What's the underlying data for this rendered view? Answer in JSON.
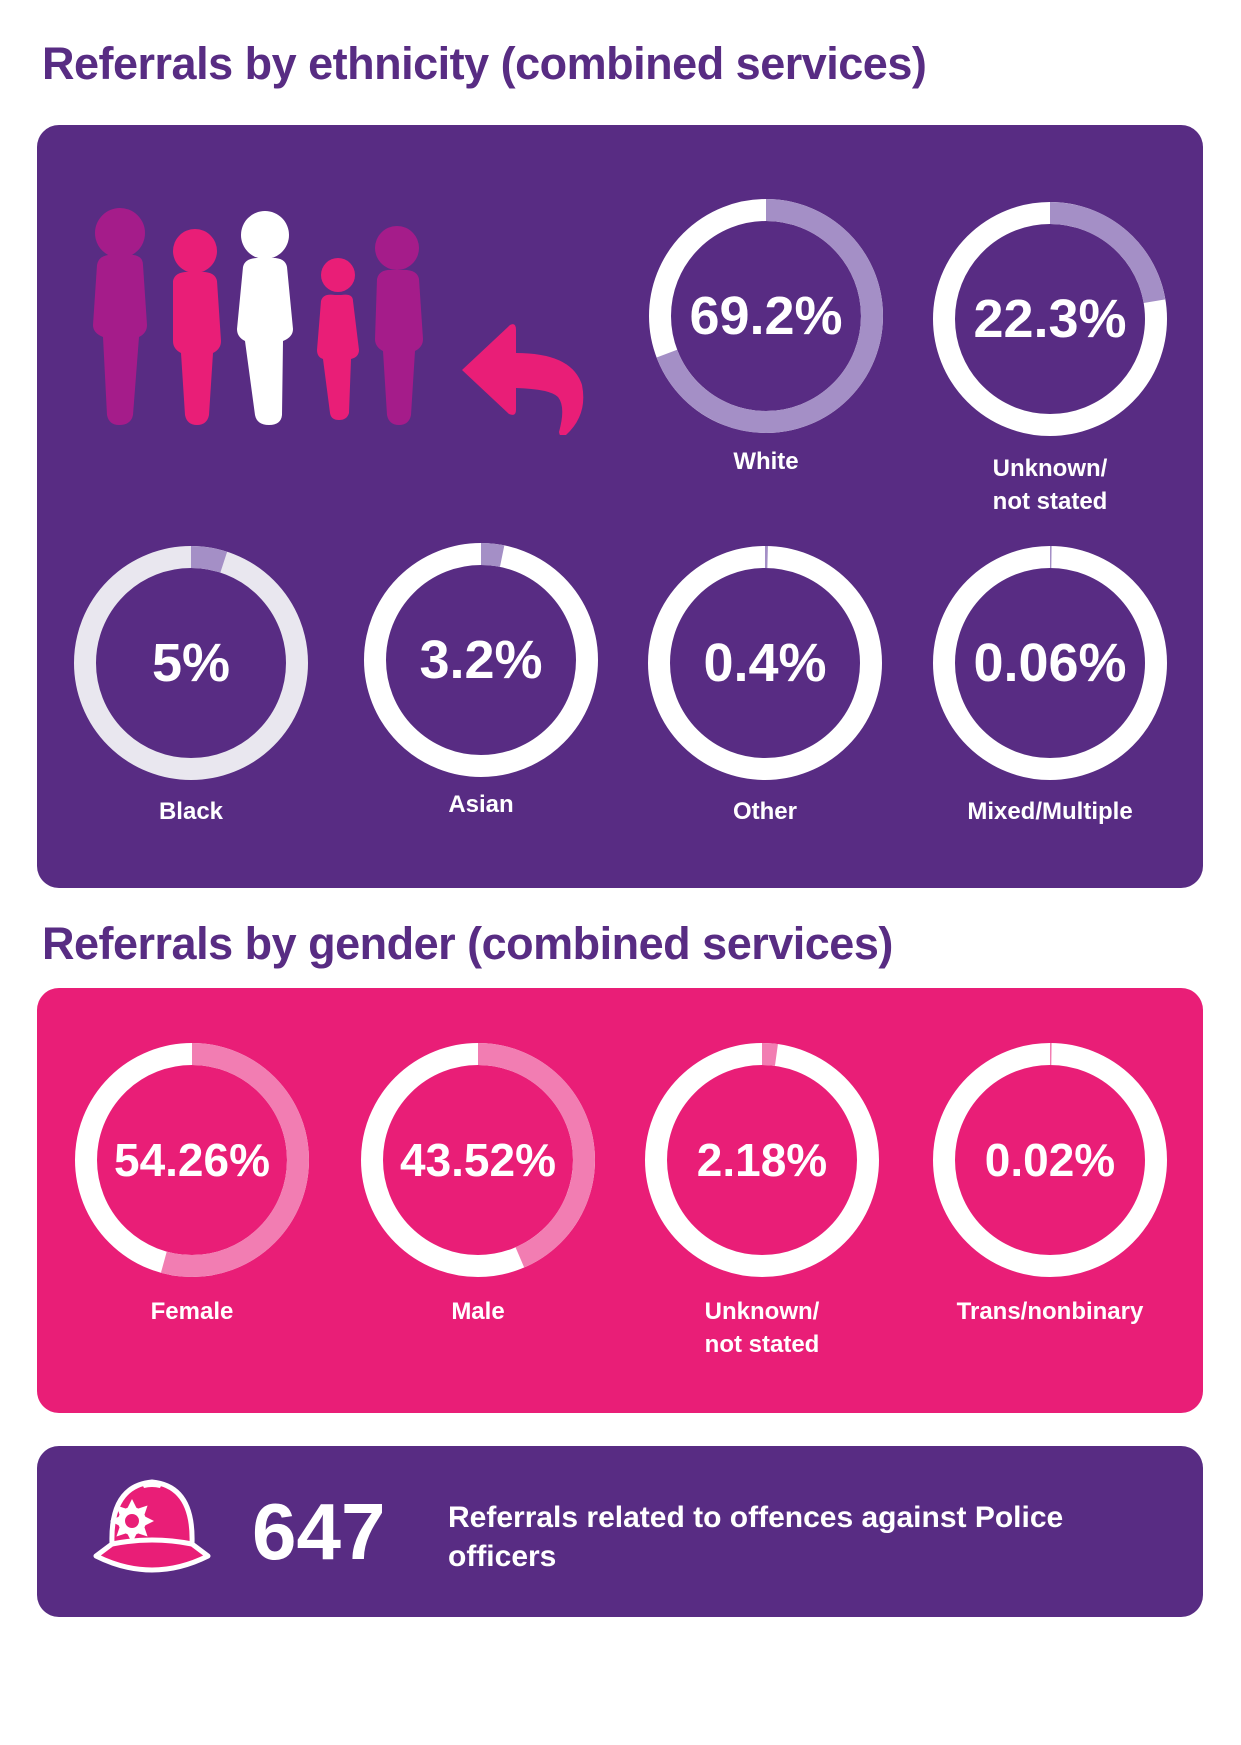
{
  "colors": {
    "purple": "#582c83",
    "pink": "#e91e77",
    "magenta": "#a51c8a",
    "lavender": "#a48fc6",
    "light_pink": "#f27db2",
    "light_gray": "#e9e7ef",
    "white": "#ffffff"
  },
  "ethnicity": {
    "title": "Referrals by ethnicity (combined services)",
    "items": [
      {
        "value": 69.2,
        "pct": "69.2%",
        "label": "White"
      },
      {
        "value": 22.3,
        "pct": "22.3%",
        "label": "Unknown/\nnot stated"
      },
      {
        "value": 5,
        "pct": "5%",
        "label": "Black"
      },
      {
        "value": 3.2,
        "pct": "3.2%",
        "label": "Asian"
      },
      {
        "value": 0.4,
        "pct": "0.4%",
        "label": "Other"
      },
      {
        "value": 0.06,
        "pct": "0.06%",
        "label": "Mixed/Multiple"
      }
    ]
  },
  "gender": {
    "title": "Referrals by gender (combined services)",
    "items": [
      {
        "value": 54.26,
        "pct": "54.26%",
        "label": "Female"
      },
      {
        "value": 43.52,
        "pct": "43.52%",
        "label": "Male"
      },
      {
        "value": 2.18,
        "pct": "2.18%",
        "label": "Unknown/\nnot stated"
      },
      {
        "value": 0.02,
        "pct": "0.02%",
        "label": "Trans/nonbinary"
      }
    ]
  },
  "police": {
    "count": "647",
    "text": "Referrals related to offences against Police officers"
  }
}
